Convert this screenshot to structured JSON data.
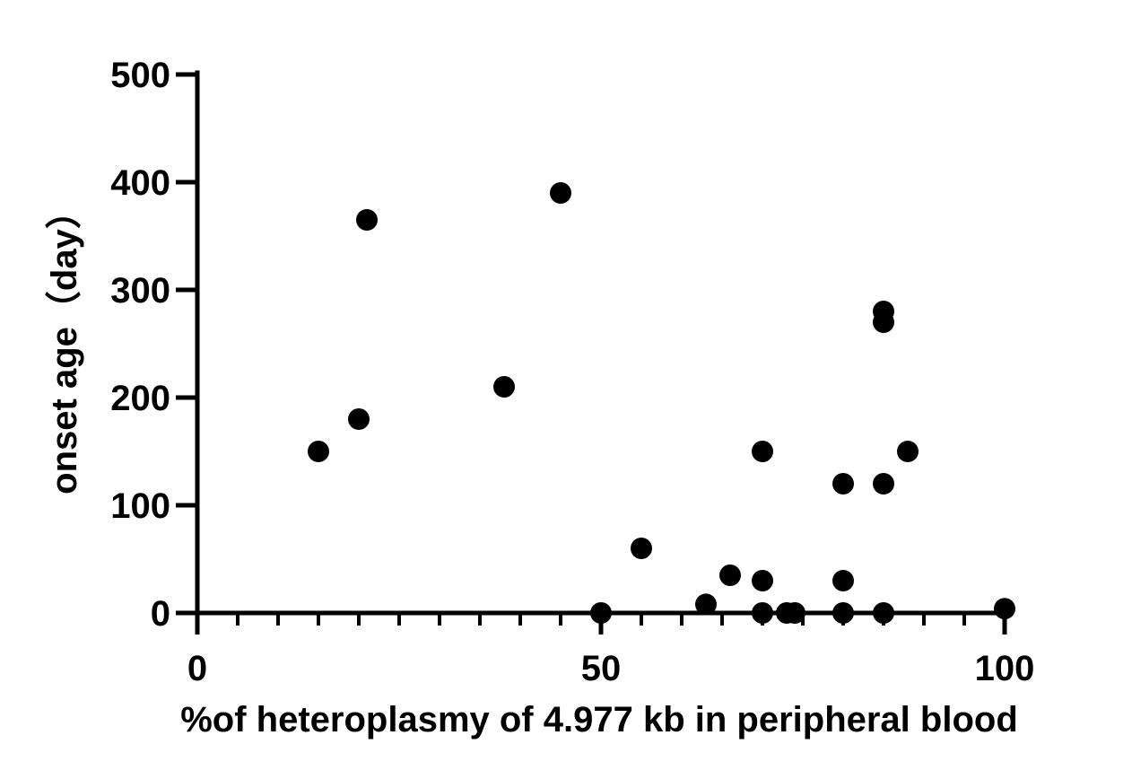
{
  "chart_data": {
    "type": "scatter",
    "title": "",
    "xlabel": "%of  heteroplasmy of 4.977 kb  in peripheral blood",
    "ylabel": "onset age（day）",
    "xlim": [
      0,
      100
    ],
    "ylim": [
      0,
      500
    ],
    "x_ticks": [
      0,
      50,
      100
    ],
    "x_tick_labels": [
      "0",
      "50",
      "100"
    ],
    "x_minor_step": 5,
    "y_ticks": [
      0,
      100,
      200,
      300,
      400,
      500
    ],
    "y_tick_labels": [
      "0",
      "100",
      "200",
      "300",
      "400",
      "500"
    ],
    "grid": false,
    "marker_color": "#000000",
    "series": [
      {
        "points": [
          {
            "x": 15,
            "y": 150
          },
          {
            "x": 20,
            "y": 180
          },
          {
            "x": 21,
            "y": 365
          },
          {
            "x": 38,
            "y": 210
          },
          {
            "x": 45,
            "y": 390
          },
          {
            "x": 50,
            "y": 0
          },
          {
            "x": 55,
            "y": 60
          },
          {
            "x": 63,
            "y": 8
          },
          {
            "x": 66,
            "y": 35
          },
          {
            "x": 70,
            "y": 150
          },
          {
            "x": 70,
            "y": 30
          },
          {
            "x": 70,
            "y": 0
          },
          {
            "x": 73,
            "y": 0
          },
          {
            "x": 74,
            "y": 0
          },
          {
            "x": 80,
            "y": 120
          },
          {
            "x": 80,
            "y": 30
          },
          {
            "x": 80,
            "y": 0
          },
          {
            "x": 85,
            "y": 280
          },
          {
            "x": 85,
            "y": 270
          },
          {
            "x": 85,
            "y": 120
          },
          {
            "x": 85,
            "y": 0
          },
          {
            "x": 88,
            "y": 150
          },
          {
            "x": 100,
            "y": 4
          }
        ]
      }
    ]
  }
}
